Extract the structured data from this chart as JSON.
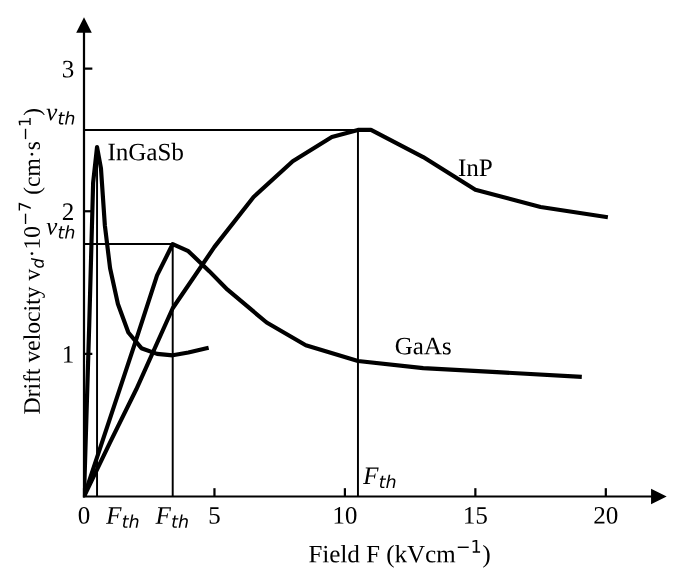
{
  "chart_data": {
    "type": "line",
    "xlabel": "Field F (kVcm$^{−1}$)",
    "ylabel": "Drift velocity v$_{d}$·10$^{−7}$ (cm·s$^{−1}$)",
    "xlim": [
      0,
      22
    ],
    "ylim": [
      0,
      3.3
    ],
    "xticks": [
      0,
      5,
      10,
      15,
      20
    ],
    "yticks": [
      1,
      2,
      3
    ],
    "grid": false,
    "legend": false,
    "marker": "none",
    "line_style": "solid",
    "series": [
      {
        "name": "InGaSb",
        "color": "#000000",
        "x": [
          0,
          0.2,
          0.35,
          0.5,
          0.65,
          0.8,
          1.0,
          1.3,
          1.7,
          2.2,
          2.8,
          3.4,
          4.0,
          4.7
        ],
        "values": [
          0,
          1.2,
          2.2,
          2.45,
          2.3,
          1.9,
          1.6,
          1.35,
          1.15,
          1.04,
          1.0,
          0.99,
          1.01,
          1.04
        ]
      },
      {
        "name": "GaAs",
        "color": "#000000",
        "x": [
          0,
          1,
          2,
          2.8,
          3.4,
          4.0,
          4.8,
          5.5,
          7,
          8.5,
          10.5,
          13,
          16,
          19
        ],
        "values": [
          0,
          0.55,
          1.1,
          1.55,
          1.77,
          1.72,
          1.58,
          1.45,
          1.22,
          1.06,
          0.95,
          0.9,
          0.87,
          0.84
        ]
      },
      {
        "name": "InP",
        "color": "#000000",
        "x": [
          0,
          1,
          2,
          3.4,
          5,
          6.5,
          8,
          9.5,
          10.5,
          11,
          13,
          15,
          17.5,
          20
        ],
        "values": [
          0,
          0.38,
          0.75,
          1.32,
          1.75,
          2.1,
          2.35,
          2.52,
          2.57,
          2.57,
          2.38,
          2.15,
          2.03,
          1.96
        ]
      }
    ],
    "ref_lines": [
      {
        "axis": "x",
        "value": 0.5,
        "label": "F$_{th}$"
      },
      {
        "axis": "x",
        "value": 3.4,
        "label": "F$_{th}$"
      },
      {
        "axis": "x",
        "value": 10.5,
        "label": "F$_{th}$"
      },
      {
        "axis": "y",
        "value": 1.77,
        "label": "v$_{th}$"
      },
      {
        "axis": "y",
        "value": 2.57,
        "label": "v$_{th}$"
      }
    ]
  }
}
